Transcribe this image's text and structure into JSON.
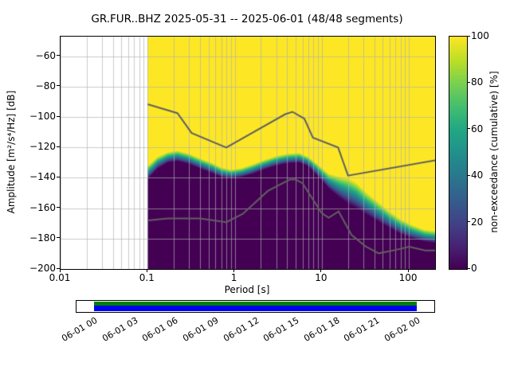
{
  "title": "GR.FUR..BHZ   2025-05-31 -- 2025-06-01  (48/48 segments)",
  "chart_data": {
    "type": "heatmap",
    "title": "GR.FUR..BHZ   2025-05-31 -- 2025-06-01  (48/48 segments)",
    "xlabel": "Period [s]",
    "ylabel": "Amplitude [m²/s⁴/Hz] [dB]",
    "colorbar_label": "non-exceedance (cumulative) [%]",
    "x_scale": "log",
    "xlim": [
      0.01,
      200
    ],
    "ylim": [
      -200,
      -47
    ],
    "x_ticks": [
      0.01,
      0.1,
      1,
      10,
      100
    ],
    "x_tick_labels": [
      "0.01",
      "0.1",
      "1",
      "10",
      "100"
    ],
    "y_ticks": [
      -60,
      -80,
      -100,
      -120,
      -140,
      -160,
      -180,
      -200
    ],
    "y_tick_labels": [
      "−60",
      "−80",
      "−100",
      "−120",
      "−140",
      "−160",
      "−180",
      "−200"
    ],
    "colorbar_ticks": [
      0,
      20,
      40,
      60,
      80,
      100
    ],
    "colorbar_tick_labels": [
      "0",
      "20",
      "40",
      "60",
      "80",
      "100"
    ],
    "colormap": "viridis",
    "viridis_stops": [
      "#440154",
      "#482475",
      "#414487",
      "#355f8d",
      "#2a788e",
      "#21918c",
      "#22a884",
      "#44bf70",
      "#7ad151",
      "#bddf26",
      "#fde725"
    ],
    "grid_color": "#b0b0b0",
    "data_period_min": 0.1,
    "distribution": {
      "comment_periods_s": "per-period boundaries of cumulative non-exceedance: db_low = 0% boundary, db_high = 100% boundary",
      "periods": [
        0.1,
        0.13,
        0.17,
        0.22,
        0.3,
        0.4,
        0.55,
        0.7,
        0.9,
        1.2,
        1.6,
        2.2,
        3.0,
        4.0,
        5.5,
        7.0,
        9.0,
        12,
        16,
        20,
        25,
        32,
        45,
        60,
        80,
        110,
        150,
        200
      ],
      "db_low": [
        -141,
        -134,
        -130,
        -129,
        -131,
        -134,
        -137,
        -139.5,
        -140.5,
        -139.5,
        -137.5,
        -134.5,
        -132,
        -130.5,
        -130,
        -132.5,
        -139,
        -147,
        -153,
        -157,
        -160,
        -164,
        -169,
        -173,
        -177,
        -180,
        -182,
        -183
      ],
      "db_high": [
        -132,
        -126,
        -123,
        -122,
        -124,
        -127,
        -130,
        -133,
        -134.5,
        -133.5,
        -131,
        -128,
        -125.5,
        -124,
        -123.5,
        -126,
        -131,
        -137,
        -139,
        -140,
        -143,
        -149,
        -156,
        -162,
        -167,
        -171,
        -174,
        -175
      ]
    },
    "noise_models": {
      "color": "#606060",
      "nhnm": {
        "periods": [
          0.1,
          0.22,
          0.32,
          0.8,
          3.8,
          4.6,
          6.3,
          7.9,
          15.4,
          20.0,
          200
        ],
        "db": [
          -91.5,
          -97.4,
          -110.5,
          -120.0,
          -98.1,
          -96.5,
          -101.0,
          -113.5,
          -120.0,
          -138.5,
          -128.5
        ]
      },
      "nlnm": {
        "periods": [
          0.1,
          0.17,
          0.4,
          0.8,
          1.24,
          2.4,
          4.3,
          5.0,
          6.0,
          10.0,
          12.0,
          15.6,
          21.9,
          31.6,
          45.0,
          70.0,
          101.0,
          154.0,
          200.0
        ],
        "db": [
          -168.0,
          -166.7,
          -166.7,
          -169.2,
          -163.7,
          -148.6,
          -141.1,
          -141.1,
          -143.5,
          -163.3,
          -166.2,
          -162.1,
          -177.5,
          -185.0,
          -189.7,
          -187.5,
          -185.4,
          -187.8,
          -187.8
        ]
      }
    }
  },
  "timeline": {
    "labels": [
      "06-01 00",
      "06-01 03",
      "06-01 06",
      "06-01 09",
      "06-01 12",
      "06-01 15",
      "06-01 18",
      "06-01 21",
      "06-02 00"
    ],
    "line_color": "#008000",
    "bar_color": "#0000ee"
  }
}
